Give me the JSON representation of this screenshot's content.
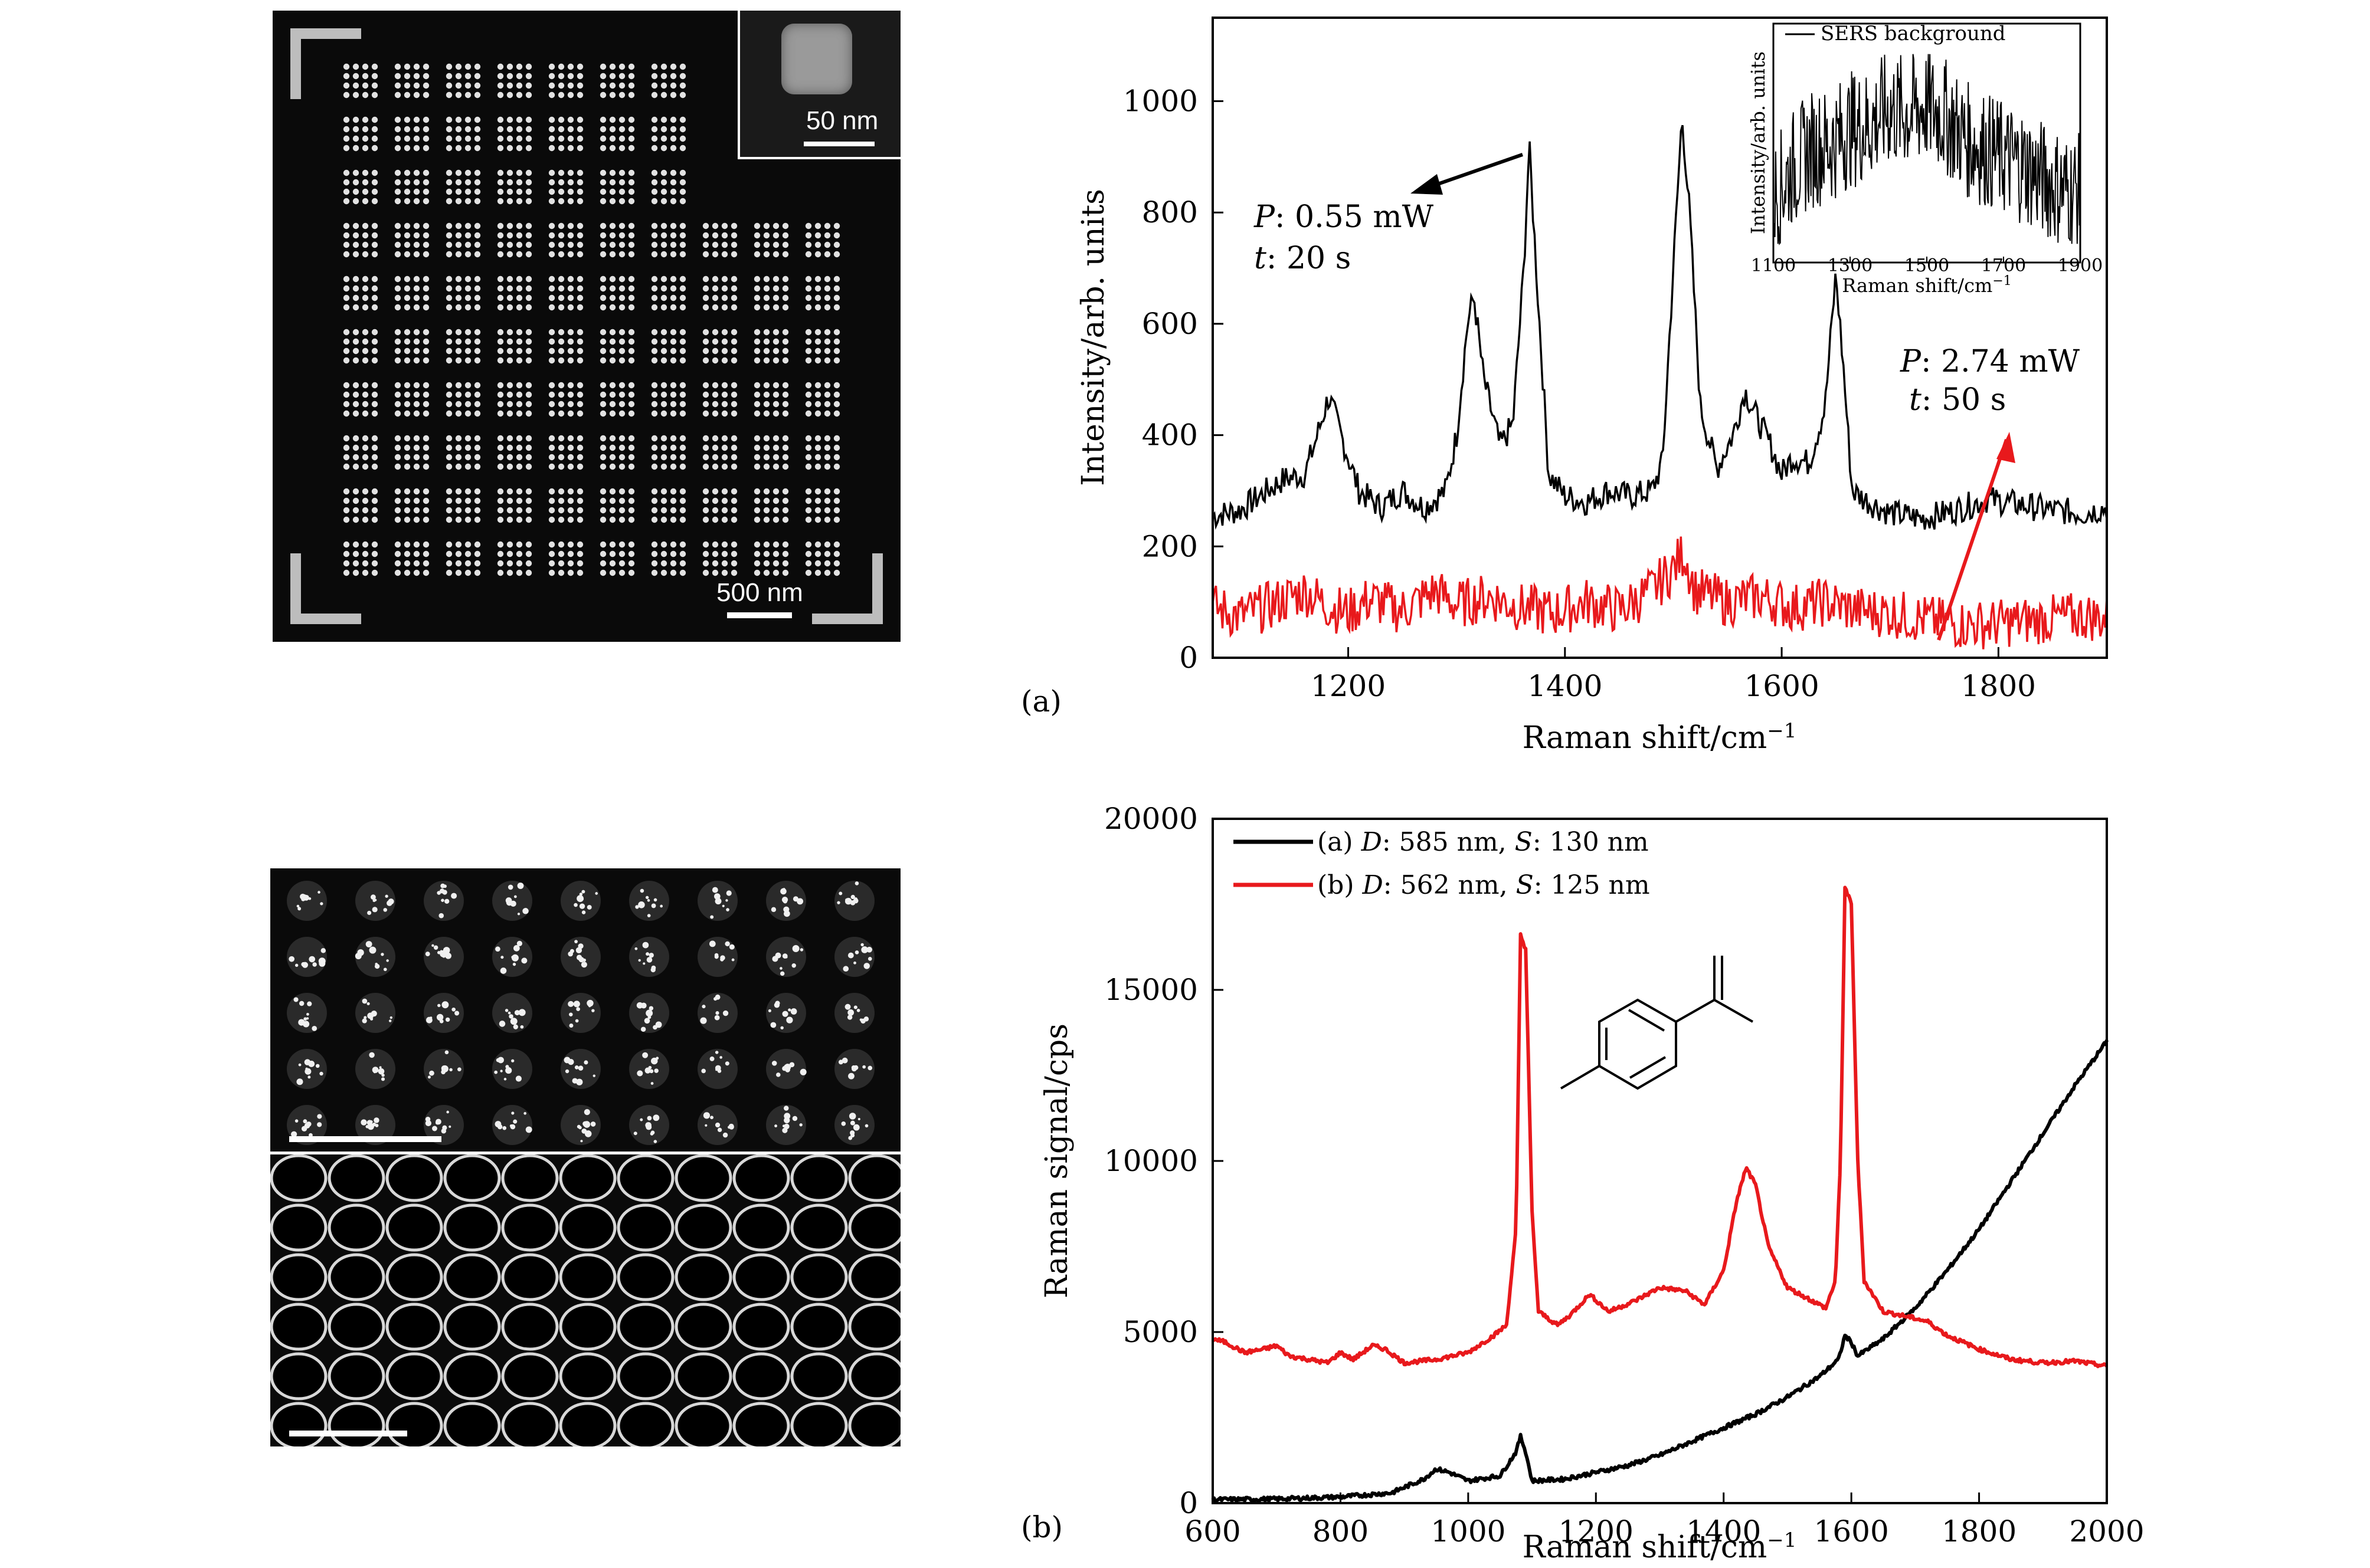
{
  "figure": {
    "label_a": "(a)",
    "label_b": "(b)"
  },
  "micro_a": {
    "scale_bar": "500 nm",
    "inset_scale_bar": "50 nm"
  },
  "chart_a": {
    "xlabel": "Raman shift/cm",
    "xlabel_sup": "−1",
    "ylabel": "Intensity/arb. units",
    "x_ticks": [
      "1200",
      "1400",
      "1600",
      "1800"
    ],
    "y_ticks": [
      "0",
      "200",
      "400",
      "600",
      "800",
      "1000"
    ],
    "annotation_top_p_label": "P",
    "annotation_top_p_value": ": 0.55 mW",
    "annotation_top_t_label": "t",
    "annotation_top_t_value": ": 20 s",
    "annotation_bottom_p_label": "P",
    "annotation_bottom_p_value": ": 2.74 mW",
    "annotation_bottom_t_label": "t",
    "annotation_bottom_t_value": ": 50 s",
    "inset": {
      "legend": "SERS background",
      "xlabel": "Raman shift/cm",
      "xlabel_sup": "−1",
      "ylabel": "Intensity/arb. units",
      "x_ticks": [
        "1100",
        "1300",
        "1500",
        "1700",
        "1900"
      ]
    }
  },
  "chart_b": {
    "xlabel": "Raman shift/cm",
    "xlabel_sup": "−1",
    "ylabel": "Raman signal/cps",
    "x_ticks": [
      "600",
      "800",
      "1000",
      "1200",
      "1400",
      "1600",
      "1800",
      "2000"
    ],
    "y_ticks": [
      "0",
      "5000",
      "10000",
      "15000",
      "20000"
    ],
    "legend_a_prefix": "(a) ",
    "legend_a_d": "D",
    "legend_a_mid": ": 585 nm, ",
    "legend_a_s": "S",
    "legend_a_end": ": 130 nm",
    "legend_b_prefix": "(b) ",
    "legend_b_d": "D",
    "legend_b_mid": ": 562 nm, ",
    "legend_b_s": "S",
    "legend_b_end": ": 125 nm"
  },
  "colors": {
    "black_series": "#000000",
    "red_series": "#e8191c"
  },
  "chart_data": [
    {
      "type": "line",
      "xlabel": "Raman shift/cm−1",
      "ylabel": "Intensity/arb. units",
      "xlim": [
        1075,
        1900
      ],
      "ylim": [
        0,
        1150
      ],
      "x_ticks": [
        1200,
        1400,
        1600,
        1800
      ],
      "y_ticks": [
        0,
        200,
        400,
        600,
        800,
        1000
      ],
      "series": [
        {
          "color": "#000000",
          "points": [
            [
              1075,
              255
            ],
            [
              1100,
              265
            ],
            [
              1125,
              300
            ],
            [
              1140,
              320
            ],
            [
              1160,
              330
            ],
            [
              1170,
              390
            ],
            [
              1182,
              470
            ],
            [
              1195,
              390
            ],
            [
              1210,
              300
            ],
            [
              1230,
              270
            ],
            [
              1250,
              300
            ],
            [
              1270,
              270
            ],
            [
              1290,
              300
            ],
            [
              1300,
              400
            ],
            [
              1310,
              600
            ],
            [
              1316,
              650
            ],
            [
              1325,
              500
            ],
            [
              1340,
              380
            ],
            [
              1352,
              420
            ],
            [
              1362,
              700
            ],
            [
              1367,
              920
            ],
            [
              1375,
              650
            ],
            [
              1385,
              330
            ],
            [
              1400,
              290
            ],
            [
              1420,
              280
            ],
            [
              1440,
              300
            ],
            [
              1460,
              290
            ],
            [
              1480,
              300
            ],
            [
              1490,
              350
            ],
            [
              1500,
              700
            ],
            [
              1508,
              975
            ],
            [
              1515,
              800
            ],
            [
              1525,
              450
            ],
            [
              1540,
              340
            ],
            [
              1555,
              400
            ],
            [
              1566,
              480
            ],
            [
              1575,
              440
            ],
            [
              1590,
              380
            ],
            [
              1600,
              330
            ],
            [
              1610,
              360
            ],
            [
              1625,
              350
            ],
            [
              1640,
              450
            ],
            [
              1650,
              690
            ],
            [
              1657,
              520
            ],
            [
              1665,
              300
            ],
            [
              1680,
              280
            ],
            [
              1700,
              260
            ],
            [
              1730,
              250
            ],
            [
              1760,
              265
            ],
            [
              1790,
              285
            ],
            [
              1820,
              275
            ],
            [
              1850,
              265
            ],
            [
              1880,
              260
            ],
            [
              1900,
              270
            ]
          ]
        },
        {
          "color": "#e8191c",
          "points": [
            [
              1075,
              90
            ],
            [
              1100,
              75
            ],
            [
              1130,
              95
            ],
            [
              1160,
              120
            ],
            [
              1180,
              95
            ],
            [
              1200,
              80
            ],
            [
              1220,
              105
            ],
            [
              1250,
              85
            ],
            [
              1280,
              120
            ],
            [
              1300,
              95
            ],
            [
              1330,
              110
            ],
            [
              1360,
              90
            ],
            [
              1390,
              80
            ],
            [
              1420,
              100
            ],
            [
              1450,
              85
            ],
            [
              1480,
              120
            ],
            [
              1500,
              160
            ],
            [
              1510,
              190
            ],
            [
              1520,
              120
            ],
            [
              1550,
              100
            ],
            [
              1580,
              110
            ],
            [
              1610,
              90
            ],
            [
              1640,
              100
            ],
            [
              1670,
              85
            ],
            [
              1700,
              80
            ],
            [
              1730,
              70
            ],
            [
              1760,
              60
            ],
            [
              1790,
              60
            ],
            [
              1820,
              65
            ],
            [
              1850,
              70
            ],
            [
              1880,
              75
            ],
            [
              1900,
              70
            ]
          ]
        }
      ]
    },
    {
      "type": "line",
      "legend": "SERS background",
      "xlabel": "Raman shift/cm−1",
      "ylabel": "Intensity/arb. units",
      "xlim": [
        1100,
        1900
      ],
      "x_ticks": [
        1100,
        1300,
        1500,
        1700,
        1900
      ],
      "series": [
        {
          "name": "SERS background",
          "color": "#000000",
          "points": [
            [
              1100,
              0.25
            ],
            [
              1150,
              0.4
            ],
            [
              1200,
              0.5
            ],
            [
              1250,
              0.52
            ],
            [
              1300,
              0.6
            ],
            [
              1350,
              0.62
            ],
            [
              1400,
              0.7
            ],
            [
              1450,
              0.68
            ],
            [
              1500,
              0.72
            ],
            [
              1550,
              0.66
            ],
            [
              1600,
              0.55
            ],
            [
              1650,
              0.5
            ],
            [
              1700,
              0.45
            ],
            [
              1750,
              0.42
            ],
            [
              1800,
              0.35
            ],
            [
              1850,
              0.3
            ],
            [
              1900,
              0.28
            ]
          ]
        }
      ]
    },
    {
      "type": "line",
      "xlabel": "Raman shift/cm−1",
      "ylabel": "Raman signal/cps",
      "xlim": [
        600,
        2000
      ],
      "ylim": [
        0,
        20000
      ],
      "x_ticks": [
        600,
        800,
        1000,
        1200,
        1400,
        1600,
        1800,
        2000
      ],
      "y_ticks": [
        0,
        5000,
        10000,
        15000,
        20000
      ],
      "series": [
        {
          "name": "(a) D: 585 nm, S: 130 nm",
          "color": "#000000",
          "points": [
            [
              600,
              100
            ],
            [
              700,
              120
            ],
            [
              800,
              180
            ],
            [
              880,
              300
            ],
            [
              930,
              700
            ],
            [
              950,
              1000
            ],
            [
              970,
              900
            ],
            [
              1000,
              650
            ],
            [
              1050,
              800
            ],
            [
              1075,
              1500
            ],
            [
              1082,
              1950
            ],
            [
              1090,
              1500
            ],
            [
              1100,
              650
            ],
            [
              1150,
              700
            ],
            [
              1200,
              900
            ],
            [
              1250,
              1100
            ],
            [
              1300,
              1400
            ],
            [
              1350,
              1800
            ],
            [
              1400,
              2200
            ],
            [
              1450,
              2600
            ],
            [
              1500,
              3100
            ],
            [
              1550,
              3700
            ],
            [
              1580,
              4200
            ],
            [
              1590,
              4900
            ],
            [
              1600,
              4700
            ],
            [
              1610,
              4300
            ],
            [
              1650,
              4800
            ],
            [
              1700,
              5700
            ],
            [
              1750,
              6800
            ],
            [
              1800,
              8000
            ],
            [
              1850,
              9400
            ],
            [
              1900,
              10800
            ],
            [
              1950,
              12200
            ],
            [
              2000,
              13500
            ]
          ]
        },
        {
          "name": "(b) D: 562 nm, S: 125 nm",
          "color": "#e8191c",
          "points": [
            [
              600,
              4800
            ],
            [
              620,
              4700
            ],
            [
              650,
              4400
            ],
            [
              680,
              4500
            ],
            [
              700,
              4600
            ],
            [
              720,
              4300
            ],
            [
              750,
              4200
            ],
            [
              780,
              4100
            ],
            [
              800,
              4400
            ],
            [
              820,
              4200
            ],
            [
              850,
              4600
            ],
            [
              870,
              4500
            ],
            [
              900,
              4100
            ],
            [
              950,
              4200
            ],
            [
              1000,
              4400
            ],
            [
              1040,
              4900
            ],
            [
              1060,
              5200
            ],
            [
              1075,
              8000
            ],
            [
              1082,
              16600
            ],
            [
              1090,
              16200
            ],
            [
              1100,
              8500
            ],
            [
              1110,
              5600
            ],
            [
              1140,
              5200
            ],
            [
              1160,
              5500
            ],
            [
              1190,
              6100
            ],
            [
              1220,
              5600
            ],
            [
              1260,
              5900
            ],
            [
              1300,
              6300
            ],
            [
              1340,
              6200
            ],
            [
              1370,
              5800
            ],
            [
              1400,
              6800
            ],
            [
              1420,
              8800
            ],
            [
              1435,
              9800
            ],
            [
              1450,
              9300
            ],
            [
              1470,
              7500
            ],
            [
              1500,
              6300
            ],
            [
              1530,
              6000
            ],
            [
              1560,
              5700
            ],
            [
              1575,
              6500
            ],
            [
              1583,
              10000
            ],
            [
              1590,
              18000
            ],
            [
              1600,
              17500
            ],
            [
              1610,
              10000
            ],
            [
              1620,
              6500
            ],
            [
              1650,
              5600
            ],
            [
              1700,
              5400
            ],
            [
              1720,
              5300
            ],
            [
              1750,
              4900
            ],
            [
              1800,
              4500
            ],
            [
              1850,
              4200
            ],
            [
              1900,
              4100
            ],
            [
              1950,
              4150
            ],
            [
              2000,
              4000
            ]
          ]
        }
      ]
    }
  ]
}
